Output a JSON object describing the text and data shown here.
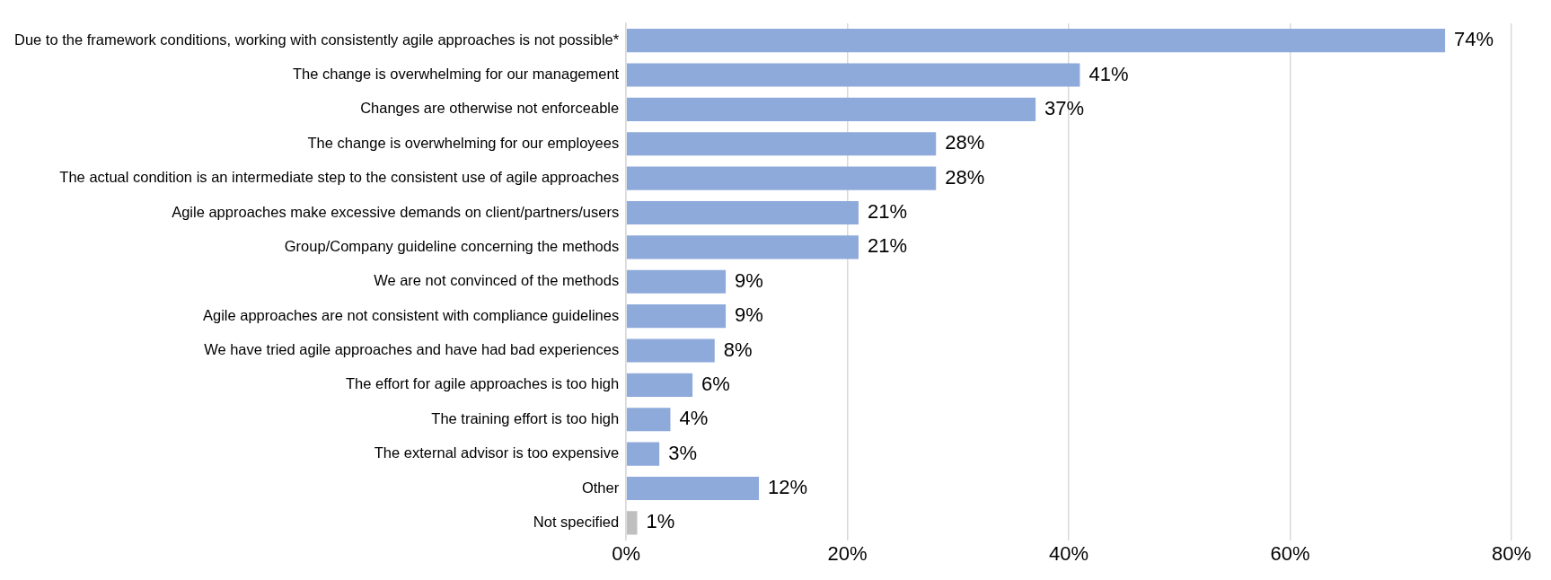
{
  "chart_data": {
    "type": "bar",
    "orientation": "horizontal",
    "categories": [
      "Due to the framework conditions, working with consistently agile approaches is not possible*",
      "The change is overwhelming for our management",
      "Changes are otherwise not enforceable",
      "The change is overwhelming for our employees",
      "The actual condition is an intermediate step to the consistent use of agile approaches",
      "Agile approaches make excessive demands on client/partners/users",
      "Group/Company guideline concerning the methods",
      "We are not convinced of the methods",
      "Agile approaches are not consistent with compliance guidelines",
      "We have tried agile approaches and have had bad experiences",
      "The effort for agile approaches is too high",
      "The training effort is too high",
      "The external advisor is too expensive",
      "Other",
      "Not specified"
    ],
    "values": [
      74,
      41,
      37,
      28,
      28,
      21,
      21,
      9,
      9,
      8,
      6,
      4,
      3,
      12,
      1
    ],
    "colors": [
      "#8eaadb",
      "#8eaadb",
      "#8eaadb",
      "#8eaadb",
      "#8eaadb",
      "#8eaadb",
      "#8eaadb",
      "#8eaadb",
      "#8eaadb",
      "#8eaadb",
      "#8eaadb",
      "#8eaadb",
      "#8eaadb",
      "#8eaadb",
      "#bfbfbf"
    ],
    "value_labels": [
      "74%",
      "41%",
      "37%",
      "28%",
      "28%",
      "21%",
      "21%",
      "9%",
      "9%",
      "8%",
      "6%",
      "4%",
      "3%",
      "12%",
      "1%"
    ],
    "xlim": [
      0,
      80
    ],
    "xticks": [
      {
        "value": 0,
        "label": "0%"
      },
      {
        "value": 20,
        "label": "20%"
      },
      {
        "value": 40,
        "label": "40%"
      },
      {
        "value": 60,
        "label": "60%"
      },
      {
        "value": 80,
        "label": "80%"
      }
    ],
    "grid": "x",
    "legend": false
  }
}
